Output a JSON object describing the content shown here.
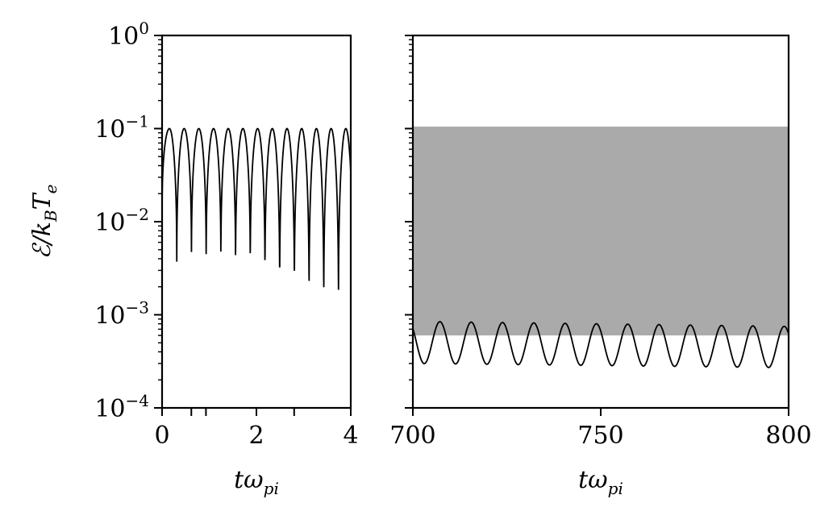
{
  "chart_data": [
    {
      "type": "line",
      "panel": "left",
      "xlabel_main": "tω",
      "xlabel_sub": "pi",
      "ylabel_main": "ℰ/k",
      "ylabel_sub1": "B",
      "ylabel_mid": "T",
      "ylabel_sub2": "e",
      "yscale": "log",
      "xlim": [
        0,
        4
      ],
      "ylim": [
        0.0001,
        1
      ],
      "x_ticks": [
        "0",
        "2",
        "4"
      ],
      "y_ticks": [
        {
          "base": "10",
          "exp": "0"
        },
        {
          "base": "10",
          "exp": "−1"
        },
        {
          "base": "10",
          "exp": "−2"
        },
        {
          "base": "10",
          "exp": "−3"
        },
        {
          "base": "10",
          "exp": "−4"
        }
      ],
      "series": [
        {
          "peak": 0.1,
          "period": 0.3116,
          "x": [
            0.0,
            0.31,
            0.62,
            0.93,
            1.25,
            1.56,
            1.87,
            2.18,
            2.49,
            2.8,
            3.12,
            3.43,
            3.74
          ],
          "troughs": [
            0.0103,
            0.0025,
            0.0029,
            0.0025,
            0.0025,
            0.0021,
            0.0021,
            0.0016,
            0.0012,
            0.0011,
            0.00085,
            0.00075,
            0.00075
          ]
        }
      ]
    },
    {
      "type": "line",
      "panel": "right",
      "xlabel_main": "tω",
      "xlabel_sub": "pi",
      "yscale": "log",
      "xlim": [
        700,
        800
      ],
      "ylim": [
        0.0001,
        1
      ],
      "x_ticks": [
        "700",
        "750",
        "800"
      ],
      "shaded_band": {
        "y_low": 0.0006,
        "y_high": 0.105,
        "color": "#aaaaaa"
      },
      "series": [
        {
          "period": 8.33,
          "phase_x": 707.2,
          "peak_start": 0.00085,
          "peak_end": 0.00075,
          "trough_start": 0.0003,
          "trough_end": 0.00027
        }
      ]
    }
  ]
}
